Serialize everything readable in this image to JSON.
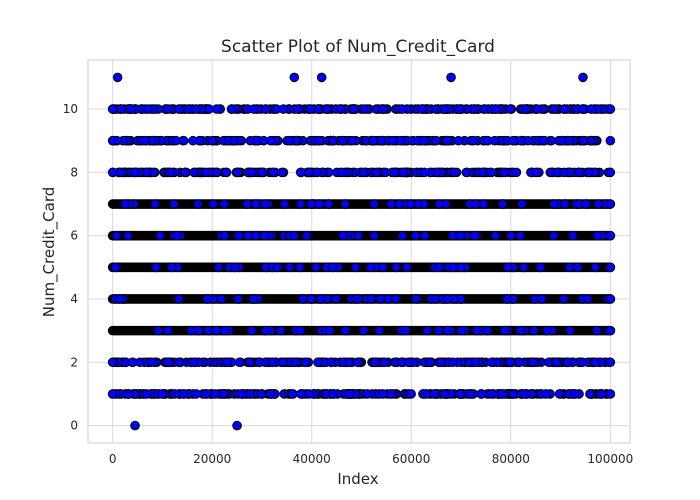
{
  "chart_data": {
    "type": "scatter",
    "title": "Scatter Plot of Num_Credit_Card",
    "xlabel": "Index",
    "ylabel": "Num_Credit_Card",
    "xlim": [
      -4950,
      103950
    ],
    "ylim": [
      -0.55,
      11.55
    ],
    "x_ticks": [
      0,
      20000,
      40000,
      60000,
      80000,
      100000
    ],
    "x_tick_labels": [
      "0",
      "20000",
      "40000",
      "60000",
      "80000",
      "100000"
    ],
    "y_ticks": [
      0,
      2,
      4,
      6,
      8,
      10
    ],
    "y_tick_labels": [
      "0",
      "2",
      "4",
      "6",
      "8",
      "10"
    ],
    "grid": true,
    "marker_color": "#0000ff",
    "marker_edge_color": "#000000",
    "x_range": [
      0,
      100000
    ],
    "dense_levels": [
      3,
      4,
      5,
      6,
      7
    ],
    "band_levels": [
      1,
      2,
      8,
      9,
      10
    ],
    "outliers": [
      {
        "x": 1000,
        "y": 11
      },
      {
        "x": 36500,
        "y": 11
      },
      {
        "x": 42000,
        "y": 11
      },
      {
        "x": 68000,
        "y": 11
      },
      {
        "x": 94500,
        "y": 11
      },
      {
        "x": 4500,
        "y": 0
      },
      {
        "x": 25000,
        "y": 0
      }
    ]
  }
}
